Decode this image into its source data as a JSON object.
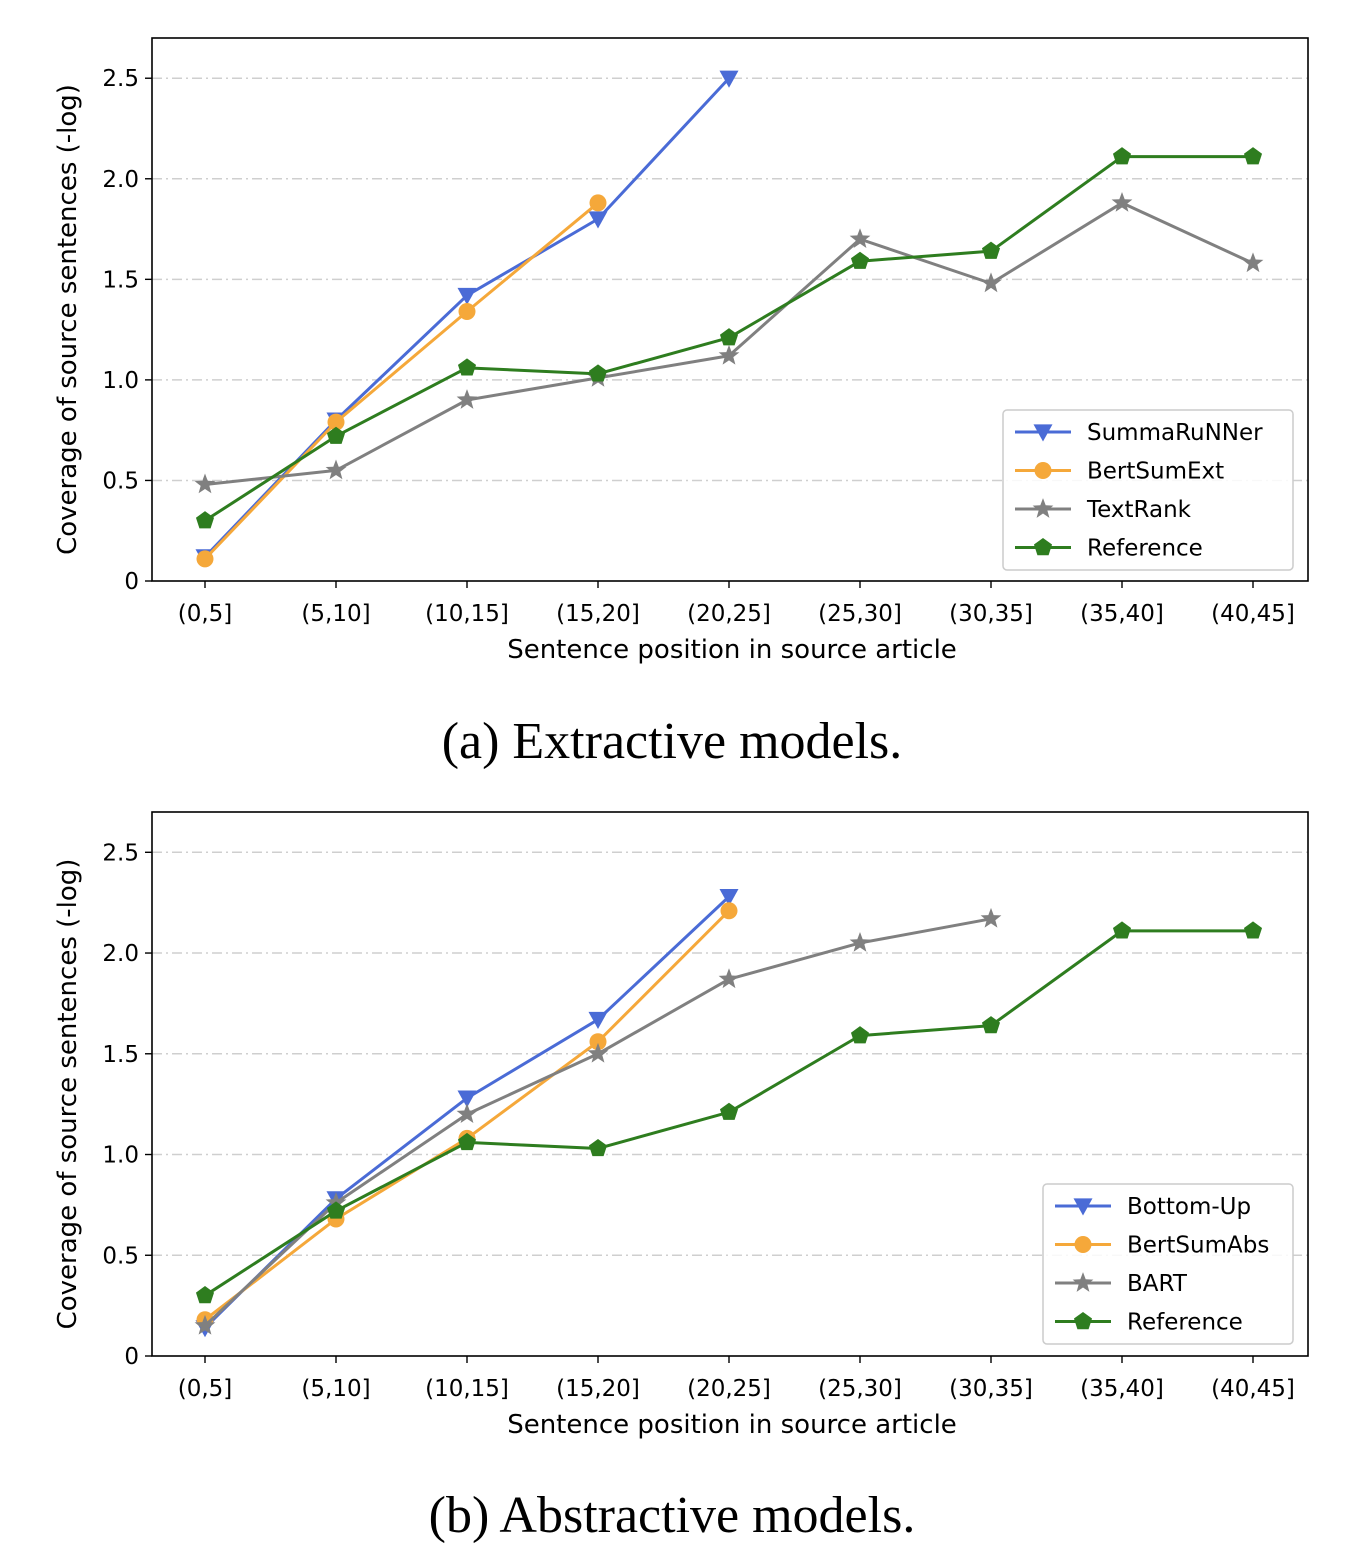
{
  "chart_data": [
    {
      "type": "line",
      "caption": "(a) Extractive models.",
      "categories": [
        "(0,5]",
        "(5,10]",
        "(10,15]",
        "(15,20]",
        "(20,25]",
        "(25,30]",
        "(30,35]",
        "(35,40]",
        "(40,45]"
      ],
      "xlabel": "Sentence position in source article",
      "ylabel": "Coverage of source sentences (-log)",
      "ylim": [
        0,
        2.7
      ],
      "yticks": [
        0,
        0.5,
        1.0,
        1.5,
        2.0,
        2.5
      ],
      "ytick_labels": [
        "0",
        "0.5",
        "1.0",
        "1.5",
        "2.0",
        "2.5"
      ],
      "grid": "horizontal dash-dot",
      "legend": "lower-right",
      "series": [
        {
          "name": "SummaRuNNer",
          "color": "#4a6bd6",
          "marker": "triangle-down",
          "values": [
            0.12,
            0.8,
            1.42,
            1.8,
            2.5,
            null,
            null,
            null,
            null
          ]
        },
        {
          "name": "BertSumExt",
          "color": "#f5a83a",
          "marker": "circle",
          "values": [
            0.11,
            0.79,
            1.34,
            1.88,
            null,
            null,
            null,
            null,
            null
          ]
        },
        {
          "name": "TextRank",
          "color": "#808080",
          "marker": "star",
          "values": [
            0.48,
            0.55,
            0.9,
            1.01,
            1.12,
            1.7,
            1.48,
            1.88,
            1.58
          ]
        },
        {
          "name": "Reference",
          "color": "#2e7d1f",
          "marker": "pentagon",
          "values": [
            0.3,
            0.72,
            1.06,
            1.03,
            1.21,
            1.59,
            1.64,
            2.11,
            2.11
          ]
        }
      ]
    },
    {
      "type": "line",
      "caption": "(b) Abstractive models.",
      "categories": [
        "(0,5]",
        "(5,10]",
        "(10,15]",
        "(15,20]",
        "(20,25]",
        "(25,30]",
        "(30,35]",
        "(35,40]",
        "(40,45]"
      ],
      "xlabel": "Sentence position in source article",
      "ylabel": "Coverage of source sentences (-log)",
      "ylim": [
        0,
        2.7
      ],
      "yticks": [
        0,
        0.5,
        1.0,
        1.5,
        2.0,
        2.5
      ],
      "ytick_labels": [
        "0",
        "0.5",
        "1.0",
        "1.5",
        "2.0",
        "2.5"
      ],
      "grid": "horizontal dash-dot",
      "legend": "lower-right",
      "series": [
        {
          "name": "Bottom-Up",
          "color": "#4a6bd6",
          "marker": "triangle-down",
          "values": [
            0.14,
            0.78,
            1.28,
            1.67,
            2.28,
            null,
            null,
            null,
            null
          ]
        },
        {
          "name": "BertSumAbs",
          "color": "#f5a83a",
          "marker": "circle",
          "values": [
            0.18,
            0.68,
            1.08,
            1.56,
            2.21,
            null,
            null,
            null,
            null
          ]
        },
        {
          "name": "BART",
          "color": "#808080",
          "marker": "star",
          "values": [
            0.15,
            0.76,
            1.2,
            1.5,
            1.87,
            2.05,
            2.17,
            null,
            null
          ]
        },
        {
          "name": "Reference",
          "color": "#2e7d1f",
          "marker": "pentagon",
          "values": [
            0.3,
            0.72,
            1.06,
            1.03,
            1.21,
            1.59,
            1.64,
            2.11,
            2.11
          ]
        }
      ]
    }
  ]
}
